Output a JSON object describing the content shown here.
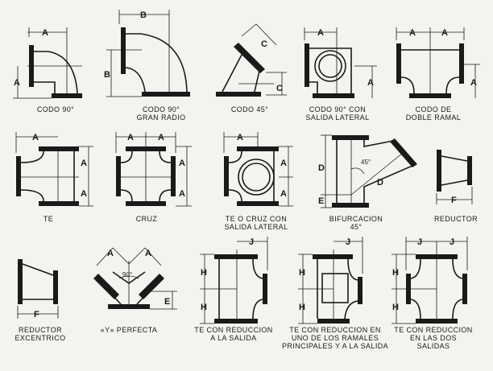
{
  "fittings": [
    {
      "id": "codo-90",
      "lines": [
        "CODO 90°"
      ],
      "dims": [
        "A",
        "A"
      ]
    },
    {
      "id": "codo-90-gran-radio",
      "lines": [
        "CODO 90°",
        "GRAN RADIO"
      ],
      "dims": [
        "B",
        "B"
      ]
    },
    {
      "id": "codo-45",
      "lines": [
        "CODO 45°"
      ],
      "dims": [
        "C",
        "C"
      ]
    },
    {
      "id": "codo-90-salida-lateral",
      "lines": [
        "CODO 90° CON",
        "SALIDA LATERAL"
      ],
      "dims": [
        "A",
        "A"
      ]
    },
    {
      "id": "codo-doble-ramal",
      "lines": [
        "CODO DE",
        "DOBLE RAMAL"
      ],
      "dims": [
        "A",
        "A",
        "A"
      ]
    },
    {
      "id": "te",
      "lines": [
        "TE"
      ],
      "dims": [
        "A",
        "A",
        "A"
      ]
    },
    {
      "id": "cruz",
      "lines": [
        "CRUZ"
      ],
      "dims": [
        "A",
        "A",
        "A",
        "A"
      ]
    },
    {
      "id": "te-cruz-salida-lateral",
      "lines": [
        "TE O CRUZ CON",
        "SALIDA LATERAL"
      ],
      "dims": [
        "A",
        "A",
        "A"
      ]
    },
    {
      "id": "bifurcacion",
      "lines": [
        "BIFURCACION",
        "45°"
      ],
      "dims": [
        "D",
        "D",
        "E"
      ],
      "angle": "45°"
    },
    {
      "id": "reductor",
      "lines": [
        "REDUCTOR"
      ],
      "dims": [
        "F"
      ]
    },
    {
      "id": "reductor-excentrico",
      "lines": [
        "REDUCTOR",
        "EXCENTRICO"
      ],
      "dims": [
        "F"
      ]
    },
    {
      "id": "y-perfecta",
      "lines": [
        "«Y» PERFECTA"
      ],
      "dims": [
        "A",
        "A",
        "E"
      ],
      "angle": "90°"
    },
    {
      "id": "te-reduccion-salida",
      "lines": [
        "TE CON REDUCCION",
        "A LA SALIDA"
      ],
      "dims": [
        "J",
        "H",
        "H"
      ]
    },
    {
      "id": "te-reduccion-ramal",
      "lines": [
        "TE CON REDUCCION EN",
        "UNO DE LOS RAMALES",
        "PRINCIPALES Y A LA SALIDA"
      ],
      "dims": [
        "J",
        "H",
        "H"
      ]
    },
    {
      "id": "te-reduccion-dos-salidas",
      "lines": [
        "TE CON REDUCCION",
        "EN LAS DOS",
        "SALIDAS"
      ],
      "dims": [
        "J",
        "J",
        "H",
        "H"
      ]
    }
  ]
}
